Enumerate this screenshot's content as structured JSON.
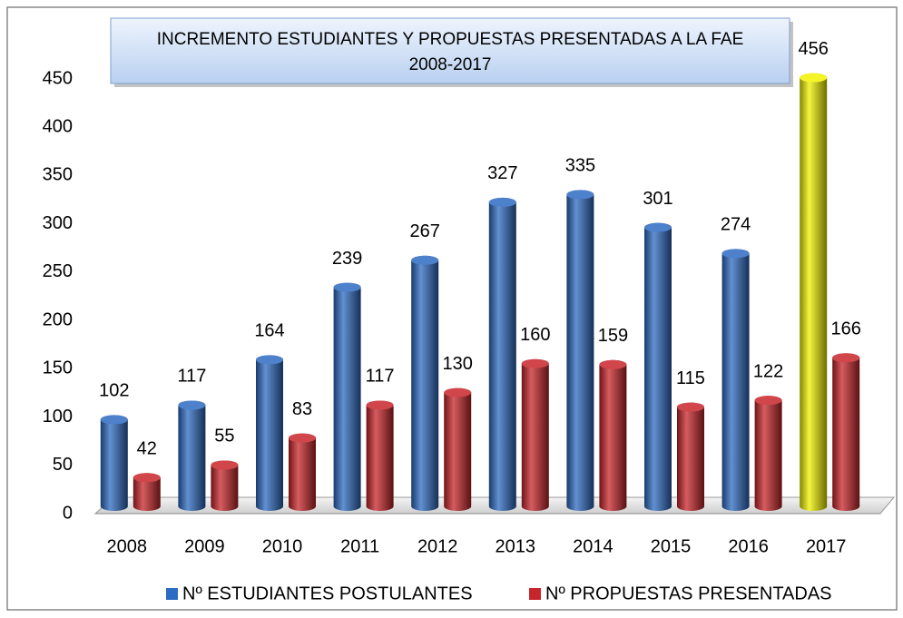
{
  "chart_data": {
    "type": "bar",
    "title": "INCREMENTO ESTUDIANTES Y PROPUESTAS PRESENTADAS A LA FAE",
    "subtitle": "2008-2017",
    "categories": [
      "2008",
      "2009",
      "2010",
      "2011",
      "2012",
      "2013",
      "2014",
      "2015",
      "2016",
      "2017"
    ],
    "series": [
      {
        "name": "Nº ESTUDIANTES POSTULANTES",
        "color": "#2e6bc2",
        "colors": [
          "#2e6bc2",
          "#2e6bc2",
          "#2e6bc2",
          "#2e6bc2",
          "#2e6bc2",
          "#2e6bc2",
          "#2e6bc2",
          "#2e6bc2",
          "#2e6bc2",
          "#f2f200"
        ],
        "values": [
          102,
          117,
          164,
          239,
          267,
          327,
          335,
          301,
          274,
          456
        ]
      },
      {
        "name": "Nº PROPUESTAS PRESENTADAS",
        "color": "#c8252a",
        "values": [
          42,
          55,
          83,
          117,
          130,
          160,
          159,
          115,
          122,
          166
        ]
      }
    ],
    "ylim": [
      0,
      450
    ],
    "yticks": [
      0,
      50,
      100,
      150,
      200,
      250,
      300,
      350,
      400,
      450
    ],
    "legend": "bottom"
  }
}
